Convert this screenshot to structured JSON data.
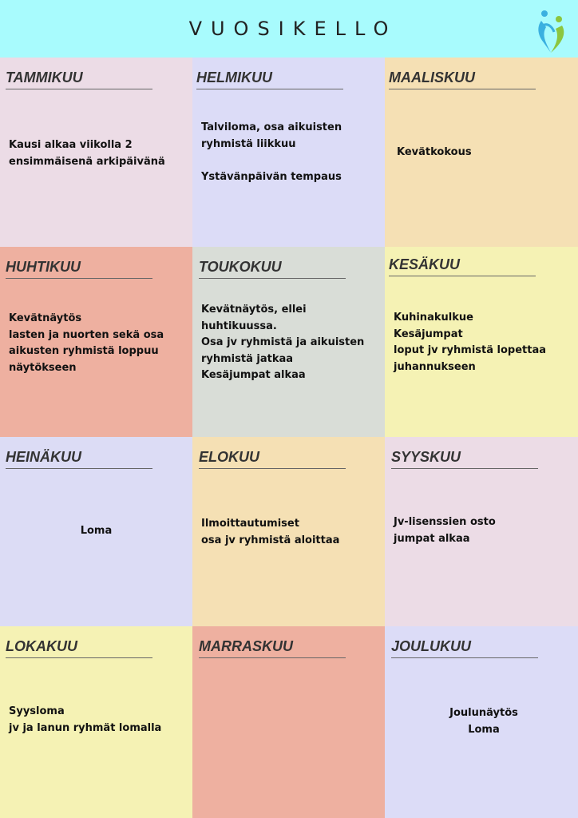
{
  "title": "VUOSIKELLO",
  "logo": "family-heart-logo",
  "colors": {
    "header": "#a8fbfd",
    "pink": "#ecdce6",
    "lavender": "#dcdcf7",
    "peach": "#f5e0b4",
    "salmon": "#eeb0a0",
    "grey": "#d9ddd7",
    "yellow": "#f5f2b4"
  },
  "months": [
    {
      "name": "TAMMIKUU",
      "text": "Kausi alkaa viikolla 2\nensimmäisenä arkipäivänä"
    },
    {
      "name": "HELMIKUU",
      "text": "Talviloma, osa aikuisten\nryhmistä liikkuu\n\nYstävänpäivän tempaus"
    },
    {
      "name": "MAALISKUU",
      "text": "Kevätkokous"
    },
    {
      "name": "HUHTIKUU",
      "text": "Kevätnäytös\nlasten ja nuorten sekä osa\naikusten ryhmistä loppuu\nnäytökseen"
    },
    {
      "name": "TOUKOKUU",
      "text": "Kevätnäytös, ellei\nhuhtikuussa.\nOsa jv ryhmistä ja aikuisten\nryhmistä jatkaa\nKesäjumpat alkaa"
    },
    {
      "name": "KESÄKUU",
      "text": "Kuhinakulkue\nKesäjumpat\nloput jv ryhmistä lopettaa\njuhannukseen"
    },
    {
      "name": "HEINÄKUU",
      "text": "Loma"
    },
    {
      "name": "ELOKUU",
      "text": "Ilmoittautumiset\nosa jv ryhmistä aloittaa"
    },
    {
      "name": "SYYSKUU",
      "text": "Jv-lisenssien osto\njumpat alkaa"
    },
    {
      "name": "LOKAKUU",
      "text": "Syysloma\njv ja lanun ryhmät lomalla"
    },
    {
      "name": "MARRASKUU",
      "text": ""
    },
    {
      "name": "JOULUKUU",
      "text": "Joulunäytös\nLoma"
    }
  ]
}
